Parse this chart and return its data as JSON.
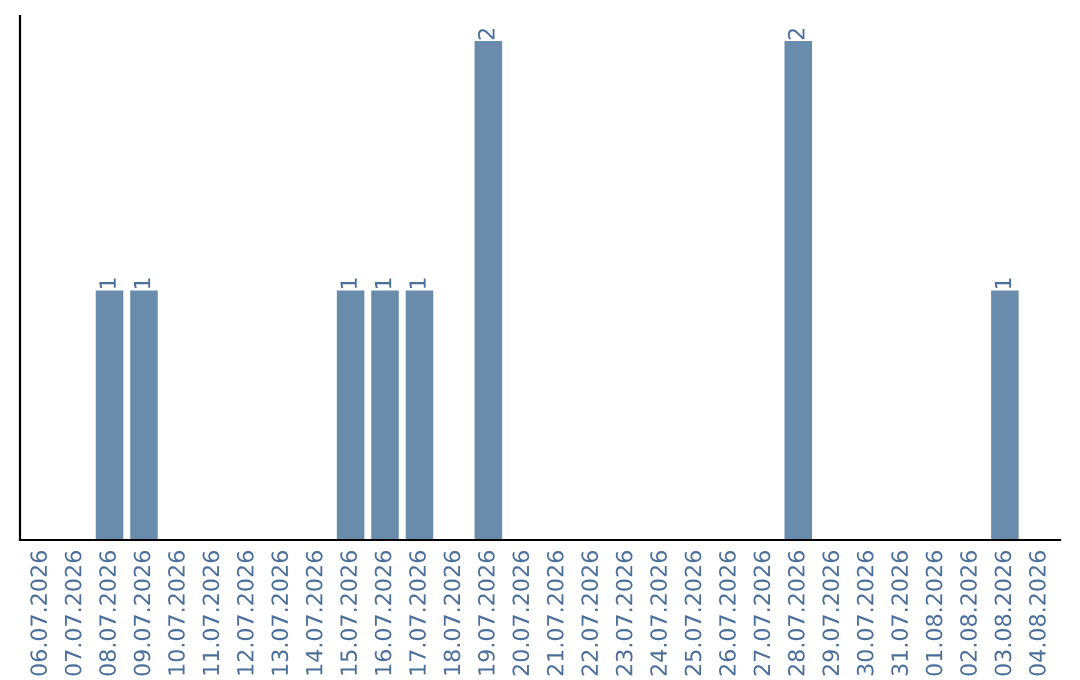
{
  "chart_data": {
    "type": "bar",
    "categories": [
      "06.07.2026",
      "07.07.2026",
      "08.07.2026",
      "09.07.2026",
      "10.07.2026",
      "11.07.2026",
      "12.07.2026",
      "13.07.2026",
      "14.07.2026",
      "15.07.2026",
      "16.07.2026",
      "17.07.2026",
      "18.07.2026",
      "19.07.2026",
      "20.07.2026",
      "21.07.2026",
      "22.07.2026",
      "23.07.2026",
      "24.07.2026",
      "25.07.2026",
      "26.07.2026",
      "27.07.2026",
      "28.07.2026",
      "29.07.2026",
      "30.07.2026",
      "31.07.2026",
      "01.08.2026",
      "02.08.2026",
      "03.08.2026",
      "04.08.2026"
    ],
    "values": [
      0,
      0,
      1,
      1,
      0,
      0,
      0,
      0,
      0,
      1,
      1,
      1,
      0,
      2,
      0,
      0,
      0,
      0,
      0,
      0,
      0,
      0,
      2,
      0,
      0,
      0,
      0,
      0,
      1,
      0
    ],
    "value_labels": [
      null,
      null,
      "1",
      "1",
      null,
      null,
      null,
      null,
      null,
      "1",
      "1",
      "1",
      null,
      "2",
      null,
      null,
      null,
      null,
      null,
      null,
      null,
      null,
      "2",
      null,
      null,
      null,
      null,
      null,
      "1",
      null
    ],
    "color": "#6a8cac",
    "ylim": [
      0,
      2.1
    ],
    "tick_labels": "x",
    "grid": false
  }
}
